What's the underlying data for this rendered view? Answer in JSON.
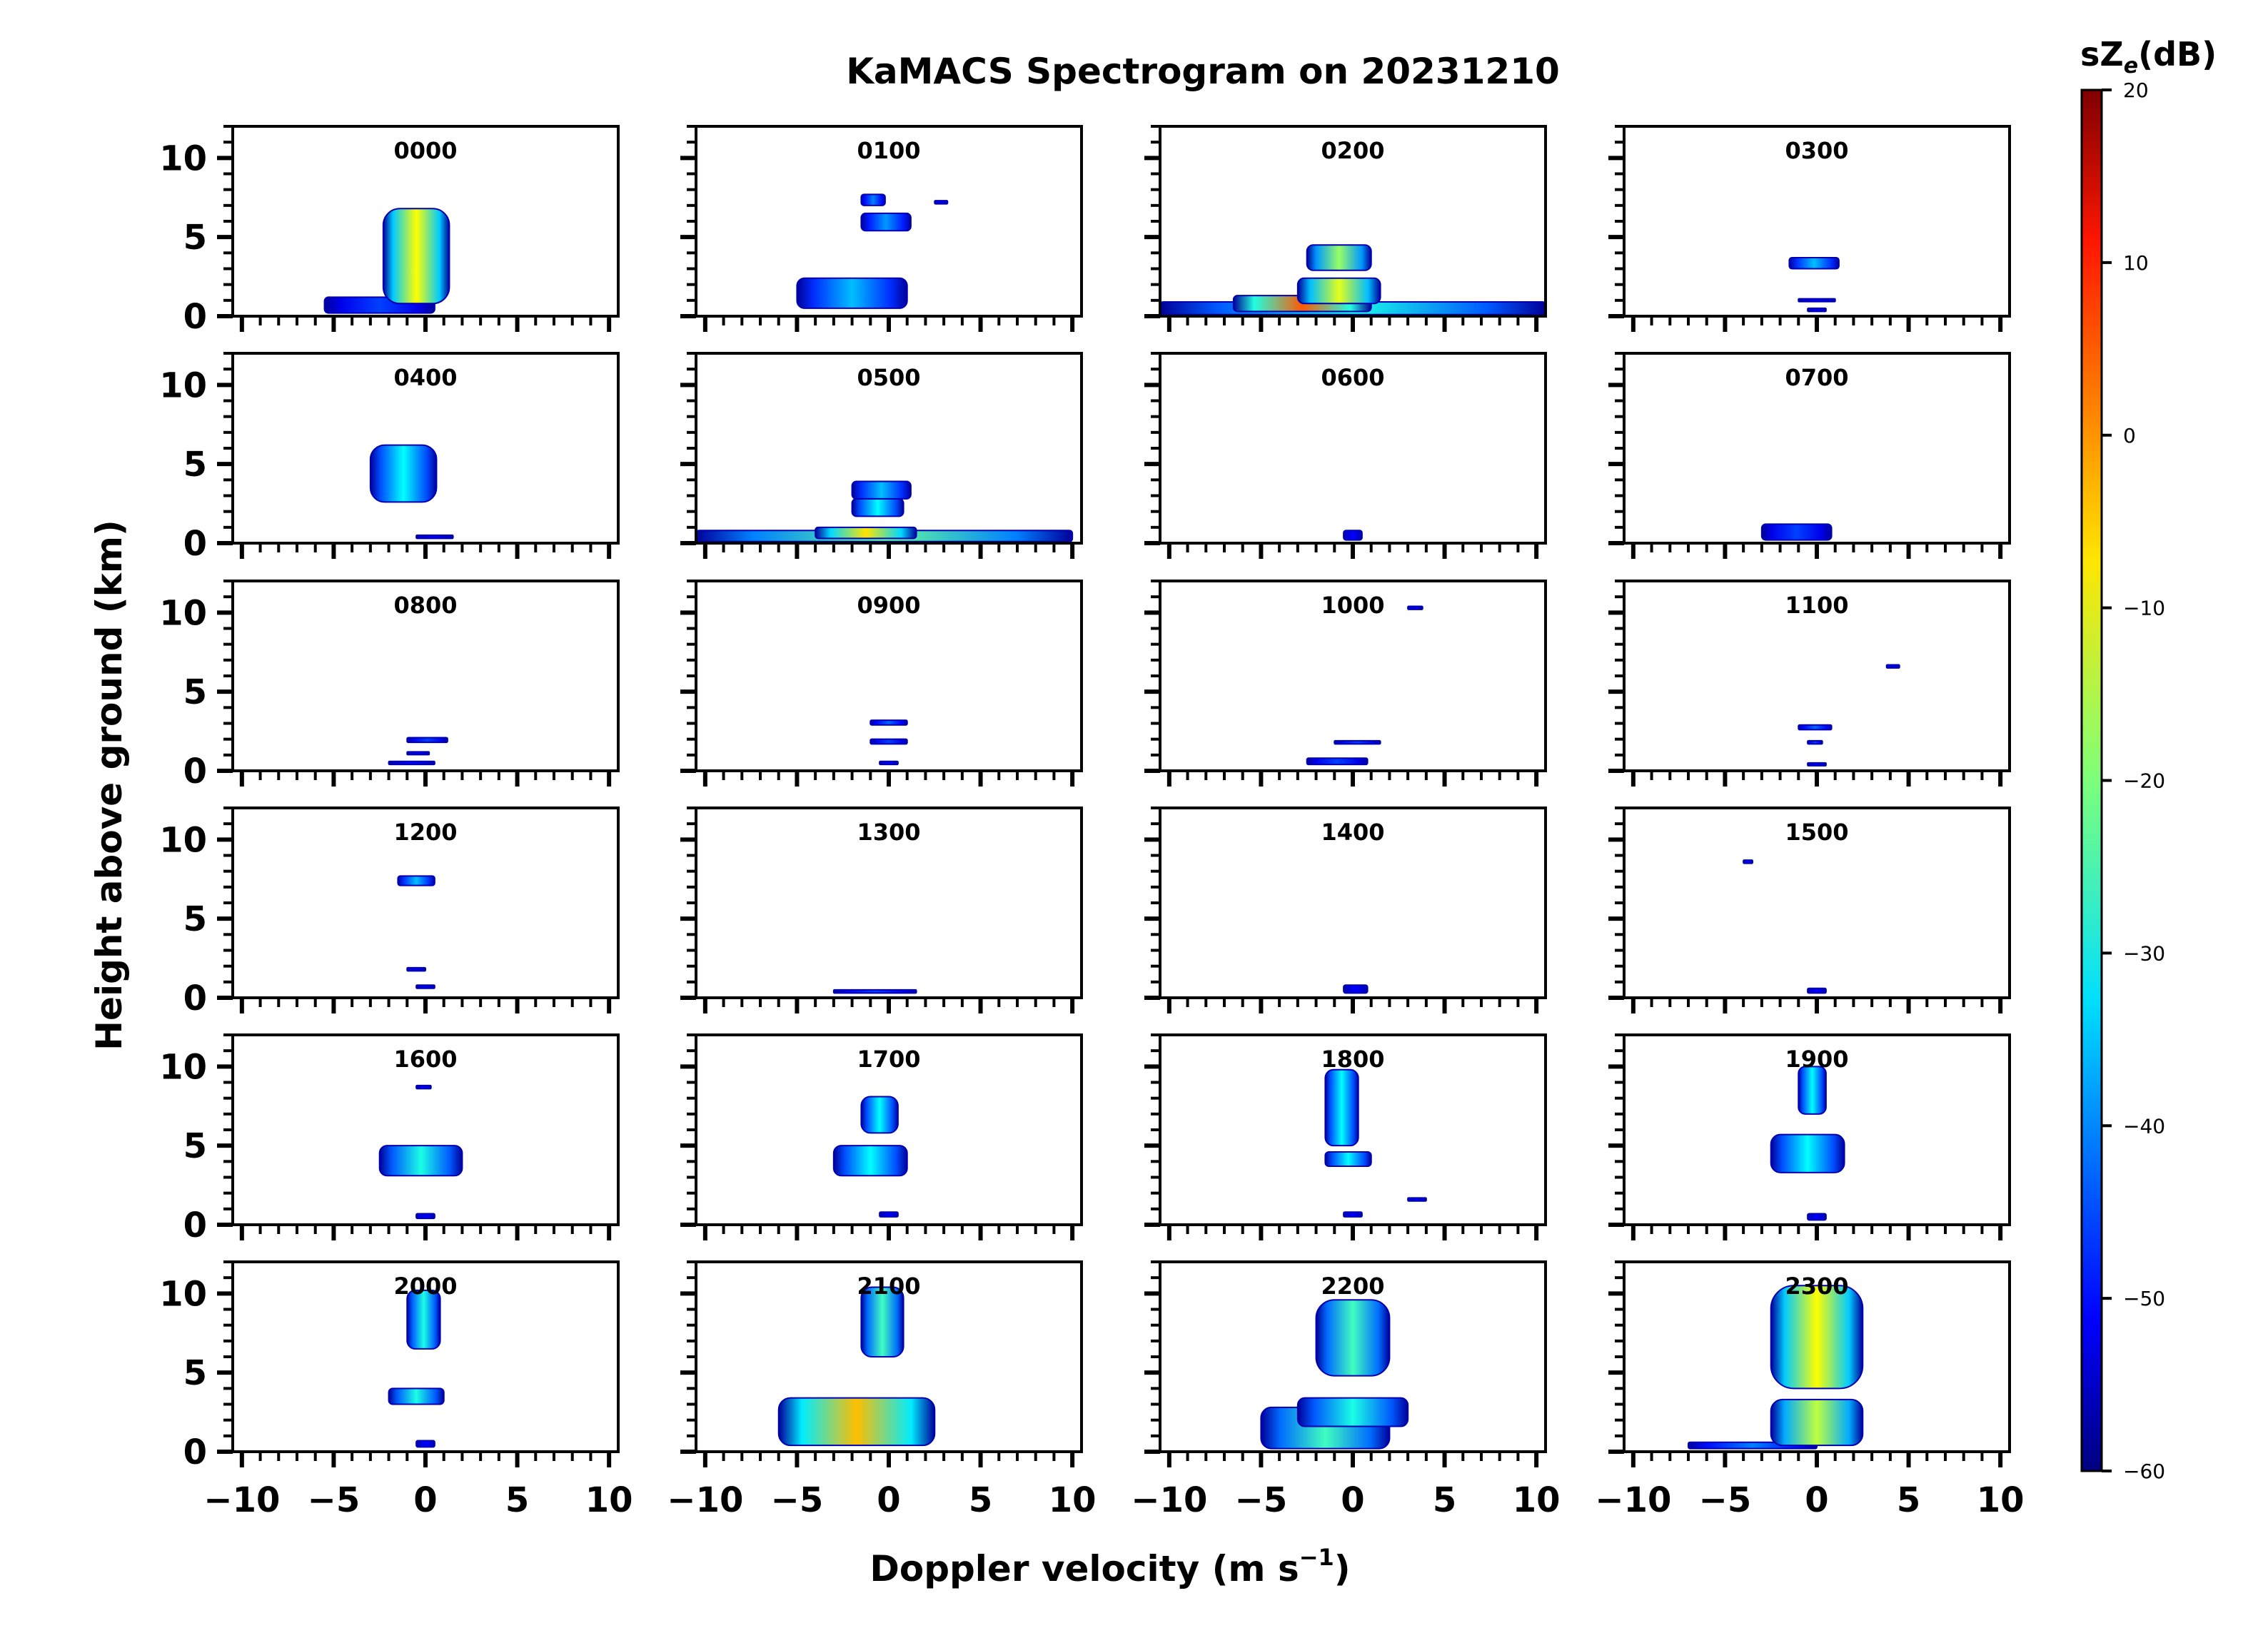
{
  "chart_data": {
    "type": "heatmap",
    "title": "KaMACS Spectrogram on 20231210",
    "xlabel": "Doppler velocity (m s",
    "xlabel_sup": "−1",
    "xlabel_close": ")",
    "ylabel": "Height above ground (km)",
    "xlim": [
      -10.5,
      10.5
    ],
    "ylim": [
      0,
      12
    ],
    "xticks": [
      -10,
      -5,
      0,
      5,
      10
    ],
    "xtick_labels": [
      "−10",
      "−5",
      "0",
      "5",
      "10"
    ],
    "yticks": [
      0,
      5,
      10
    ],
    "ytick_labels": [
      "0",
      "5",
      "10"
    ],
    "colorbar": {
      "label": "sZ",
      "label_sub": "e",
      "label_unit": "(dB)",
      "min": -60,
      "max": 20,
      "ticks": [
        20,
        10,
        0,
        -10,
        -20,
        -30,
        -40,
        -50,
        -60
      ],
      "tick_labels": [
        "20",
        "10",
        "0",
        "−10",
        "−20",
        "−30",
        "−40",
        "−50",
        "−60"
      ],
      "colormap": "jet"
    },
    "panels": [
      {
        "label": "0000",
        "echoes": [
          {
            "h0": 0.2,
            "h1": 1.2,
            "vl": -5.5,
            "vr": 0.5,
            "c": -45
          },
          {
            "h0": 0.8,
            "h1": 6.8,
            "vl": -2.3,
            "vr": 1.3,
            "c": -10
          }
        ]
      },
      {
        "label": "0100",
        "echoes": [
          {
            "h0": 0.5,
            "h1": 2.4,
            "vl": -5.0,
            "vr": 1.0,
            "c": -35
          },
          {
            "h0": 5.4,
            "h1": 6.5,
            "vl": -1.5,
            "vr": 1.2,
            "c": -38
          },
          {
            "h0": 7.0,
            "h1": 7.7,
            "vl": -1.5,
            "vr": -0.2,
            "c": -40
          },
          {
            "h0": 7.1,
            "h1": 7.3,
            "vl": 2.5,
            "vr": 3.2,
            "c": -50
          }
        ]
      },
      {
        "label": "0200",
        "echoes": [
          {
            "h0": 0.1,
            "h1": 0.9,
            "vl": -10.5,
            "vr": 10.5,
            "c": -28
          },
          {
            "h0": 0.3,
            "h1": 1.3,
            "vl": -6.5,
            "vr": 1.0,
            "c": 3
          },
          {
            "h0": 0.8,
            "h1": 2.4,
            "vl": -3.0,
            "vr": 1.5,
            "c": -12
          },
          {
            "h0": 2.9,
            "h1": 4.5,
            "vl": -2.5,
            "vr": 1.0,
            "c": -18
          }
        ]
      },
      {
        "label": "0300",
        "echoes": [
          {
            "h0": 0.3,
            "h1": 0.5,
            "vl": -0.5,
            "vr": 0.5,
            "c": -50
          },
          {
            "h0": 1.0,
            "h1": 1.1,
            "vl": -1.0,
            "vr": 1.0,
            "c": -50
          },
          {
            "h0": 3.0,
            "h1": 3.7,
            "vl": -1.5,
            "vr": 1.2,
            "c": -35
          }
        ]
      },
      {
        "label": "0400",
        "echoes": [
          {
            "h0": 0.3,
            "h1": 0.5,
            "vl": -0.5,
            "vr": 1.5,
            "c": -50
          },
          {
            "h0": 2.6,
            "h1": 6.2,
            "vl": -3.0,
            "vr": 0.6,
            "c": -30
          }
        ]
      },
      {
        "label": "0500",
        "echoes": [
          {
            "h0": 0.1,
            "h1": 0.8,
            "vl": -10.5,
            "vr": 10.0,
            "c": -22
          },
          {
            "h0": 0.3,
            "h1": 1.0,
            "vl": -4.0,
            "vr": 1.5,
            "c": -8
          },
          {
            "h0": 1.7,
            "h1": 2.8,
            "vl": -2.0,
            "vr": 0.8,
            "c": -30
          },
          {
            "h0": 2.8,
            "h1": 3.9,
            "vl": -2.0,
            "vr": 1.2,
            "c": -35
          }
        ]
      },
      {
        "label": "0600",
        "echoes": [
          {
            "h0": 0.2,
            "h1": 0.8,
            "vl": -0.5,
            "vr": 0.5,
            "c": -50
          }
        ]
      },
      {
        "label": "0700",
        "echoes": [
          {
            "h0": 0.2,
            "h1": 1.2,
            "vl": -3.0,
            "vr": 0.8,
            "c": -45
          }
        ]
      },
      {
        "label": "0800",
        "echoes": [
          {
            "h0": 0.4,
            "h1": 0.6,
            "vl": -2.0,
            "vr": 0.5,
            "c": -50
          },
          {
            "h0": 1.8,
            "h1": 2.1,
            "vl": -1.0,
            "vr": 1.2,
            "c": -45
          },
          {
            "h0": 1.1,
            "h1": 1.2,
            "vl": -1.0,
            "vr": 0.2,
            "c": -50
          }
        ]
      },
      {
        "label": "0900",
        "echoes": [
          {
            "h0": 0.4,
            "h1": 0.6,
            "vl": -0.5,
            "vr": 0.5,
            "c": -50
          },
          {
            "h0": 1.7,
            "h1": 2.0,
            "vl": -1.0,
            "vr": 1.0,
            "c": -45
          },
          {
            "h0": 2.9,
            "h1": 3.2,
            "vl": -1.0,
            "vr": 1.0,
            "c": -42
          }
        ]
      },
      {
        "label": "1000",
        "echoes": [
          {
            "h0": 0.4,
            "h1": 0.8,
            "vl": -2.5,
            "vr": 0.8,
            "c": -45
          },
          {
            "h0": 1.7,
            "h1": 1.9,
            "vl": -1.0,
            "vr": 1.5,
            "c": -45
          },
          {
            "h0": 10.2,
            "h1": 10.4,
            "vl": 3.0,
            "vr": 3.8,
            "c": -50
          }
        ]
      },
      {
        "label": "1100",
        "echoes": [
          {
            "h0": 0.4,
            "h1": 0.5,
            "vl": -0.5,
            "vr": 0.5,
            "c": -50
          },
          {
            "h0": 1.7,
            "h1": 1.9,
            "vl": -0.5,
            "vr": 0.3,
            "c": -45
          },
          {
            "h0": 2.6,
            "h1": 2.9,
            "vl": -1.0,
            "vr": 0.8,
            "c": -42
          },
          {
            "h0": 6.5,
            "h1": 6.7,
            "vl": 3.8,
            "vr": 4.5,
            "c": -50
          }
        ]
      },
      {
        "label": "1200",
        "echoes": [
          {
            "h0": 0.6,
            "h1": 0.8,
            "vl": -0.5,
            "vr": 0.5,
            "c": -50
          },
          {
            "h0": 1.7,
            "h1": 1.9,
            "vl": -1.0,
            "vr": 0.0,
            "c": -50
          },
          {
            "h0": 7.1,
            "h1": 7.7,
            "vl": -1.5,
            "vr": 0.5,
            "c": -35
          }
        ]
      },
      {
        "label": "1300",
        "echoes": [
          {
            "h0": 0.3,
            "h1": 0.5,
            "vl": -3.0,
            "vr": 1.5,
            "c": -45
          }
        ]
      },
      {
        "label": "1400",
        "echoes": [
          {
            "h0": 0.3,
            "h1": 0.8,
            "vl": -0.5,
            "vr": 0.8,
            "c": -50
          }
        ]
      },
      {
        "label": "1500",
        "echoes": [
          {
            "h0": 0.3,
            "h1": 0.6,
            "vl": -0.5,
            "vr": 0.5,
            "c": -50
          },
          {
            "h0": 8.5,
            "h1": 8.7,
            "vl": -4.0,
            "vr": -3.5,
            "c": -50
          }
        ]
      },
      {
        "label": "1600",
        "echoes": [
          {
            "h0": 0.4,
            "h1": 0.7,
            "vl": -0.5,
            "vr": 0.5,
            "c": -50
          },
          {
            "h0": 3.1,
            "h1": 5.0,
            "vl": -2.5,
            "vr": 2.0,
            "c": -28
          },
          {
            "h0": 8.6,
            "h1": 8.8,
            "vl": -0.5,
            "vr": 0.3,
            "c": -50
          }
        ]
      },
      {
        "label": "1700",
        "echoes": [
          {
            "h0": 0.5,
            "h1": 0.8,
            "vl": -0.5,
            "vr": 0.5,
            "c": -50
          },
          {
            "h0": 3.1,
            "h1": 5.0,
            "vl": -3.0,
            "vr": 1.0,
            "c": -30
          },
          {
            "h0": 5.8,
            "h1": 8.1,
            "vl": -1.5,
            "vr": 0.5,
            "c": -30
          }
        ]
      },
      {
        "label": "1800",
        "echoes": [
          {
            "h0": 0.5,
            "h1": 0.8,
            "vl": -0.5,
            "vr": 0.5,
            "c": -50
          },
          {
            "h0": 1.5,
            "h1": 1.7,
            "vl": 3.0,
            "vr": 4.0,
            "c": -50
          },
          {
            "h0": 3.7,
            "h1": 4.6,
            "vl": -1.5,
            "vr": 1.0,
            "c": -30
          },
          {
            "h0": 5.0,
            "h1": 9.8,
            "vl": -1.5,
            "vr": 0.3,
            "c": -30
          }
        ]
      },
      {
        "label": "1900",
        "echoes": [
          {
            "h0": 0.3,
            "h1": 0.7,
            "vl": -0.5,
            "vr": 0.5,
            "c": -50
          },
          {
            "h0": 3.3,
            "h1": 5.7,
            "vl": -2.5,
            "vr": 1.5,
            "c": -30
          },
          {
            "h0": 7.0,
            "h1": 10.0,
            "vl": -1.0,
            "vr": 0.5,
            "c": -30
          }
        ]
      },
      {
        "label": "2000",
        "echoes": [
          {
            "h0": 0.3,
            "h1": 0.7,
            "vl": -0.5,
            "vr": 0.5,
            "c": -50
          },
          {
            "h0": 3.0,
            "h1": 4.0,
            "vl": -2.0,
            "vr": 1.0,
            "c": -28
          },
          {
            "h0": 6.5,
            "h1": 10.2,
            "vl": -1.0,
            "vr": 0.8,
            "c": -28
          }
        ]
      },
      {
        "label": "2100",
        "echoes": [
          {
            "h0": 0.4,
            "h1": 3.4,
            "vl": -6.0,
            "vr": 2.5,
            "c": -5
          },
          {
            "h0": 6.0,
            "h1": 10.4,
            "vl": -1.5,
            "vr": 0.8,
            "c": -25
          }
        ]
      },
      {
        "label": "2200",
        "echoes": [
          {
            "h0": 0.2,
            "h1": 2.8,
            "vl": -5.0,
            "vr": 2.0,
            "c": -25
          },
          {
            "h0": 1.6,
            "h1": 3.4,
            "vl": -3.0,
            "vr": 3.0,
            "c": -28
          },
          {
            "h0": 4.8,
            "h1": 9.6,
            "vl": -2.0,
            "vr": 2.0,
            "c": -25
          }
        ]
      },
      {
        "label": "2300",
        "echoes": [
          {
            "h0": 0.2,
            "h1": 0.6,
            "vl": -7.0,
            "vr": 0.0,
            "c": -40
          },
          {
            "h0": 0.4,
            "h1": 3.3,
            "vl": -2.5,
            "vr": 2.5,
            "c": -15
          },
          {
            "h0": 4.0,
            "h1": 10.5,
            "vl": -2.5,
            "vr": 2.5,
            "c": -10
          }
        ]
      }
    ]
  }
}
